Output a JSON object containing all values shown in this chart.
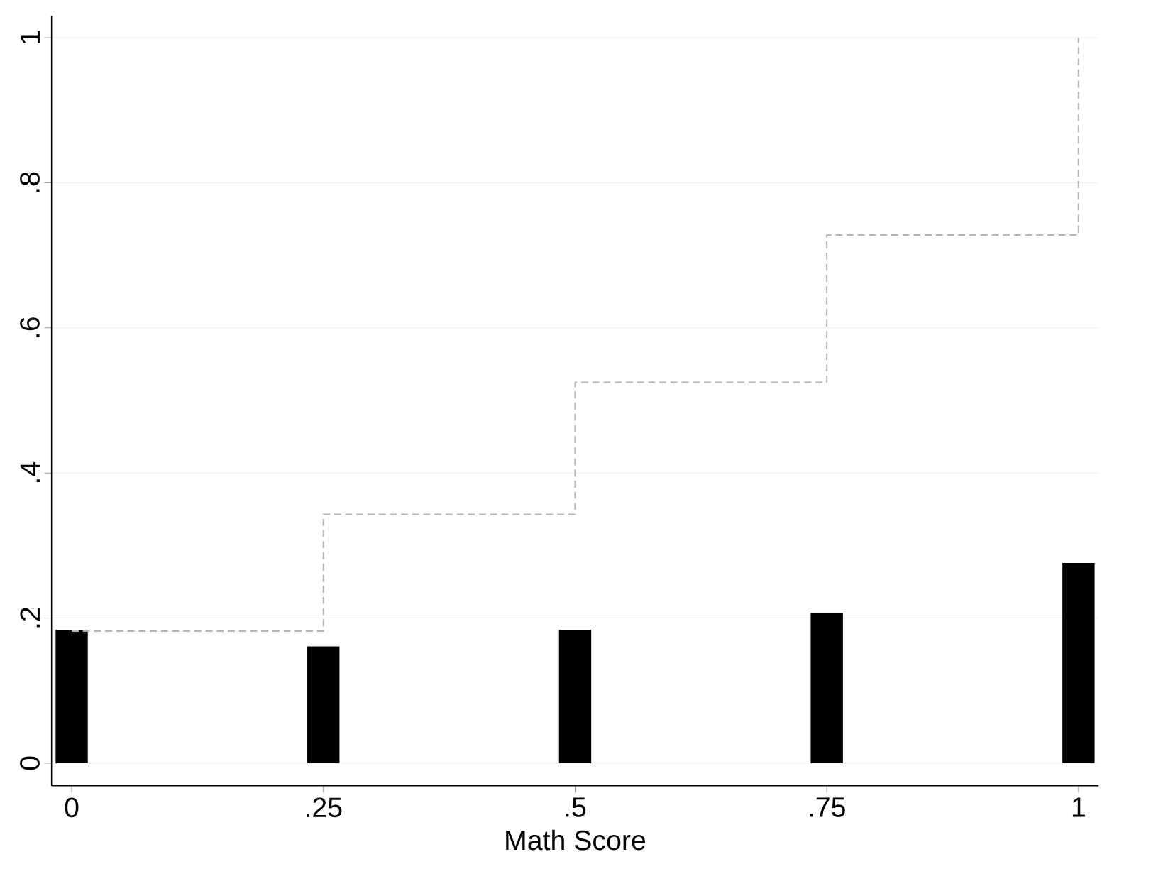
{
  "chart_data": {
    "type": "bar",
    "xlabel": "Math Score",
    "x": [
      0,
      0.25,
      0.5,
      0.75,
      1
    ],
    "series": [
      {
        "color": "#000000",
        "values": [
          0.184,
          0.161,
          0.184,
          0.207,
          0.276
        ]
      },
      {
        "type": "step",
        "color": "#b4b4b4",
        "line_style": "dashed",
        "values": [
          0.182,
          0.343,
          0.525,
          0.728,
          1
        ]
      }
    ],
    "xlim": [
      -0.02,
      1.02
    ],
    "ylim": [
      -0.031,
      1.03
    ],
    "xticks": [
      0,
      {
        "value": 0.25,
        "label": ".25"
      },
      {
        "value": 0.5,
        "label": ".5"
      },
      {
        "value": 0.75,
        "label": ".75"
      },
      1
    ],
    "yticks": [
      0,
      {
        "value": 0.2,
        "label": ".2"
      },
      {
        "value": 0.4,
        "label": ".4"
      },
      {
        "value": 0.6,
        "label": ".6"
      },
      {
        "value": 0.8,
        "label": ".8"
      },
      1
    ],
    "grid": "y"
  }
}
